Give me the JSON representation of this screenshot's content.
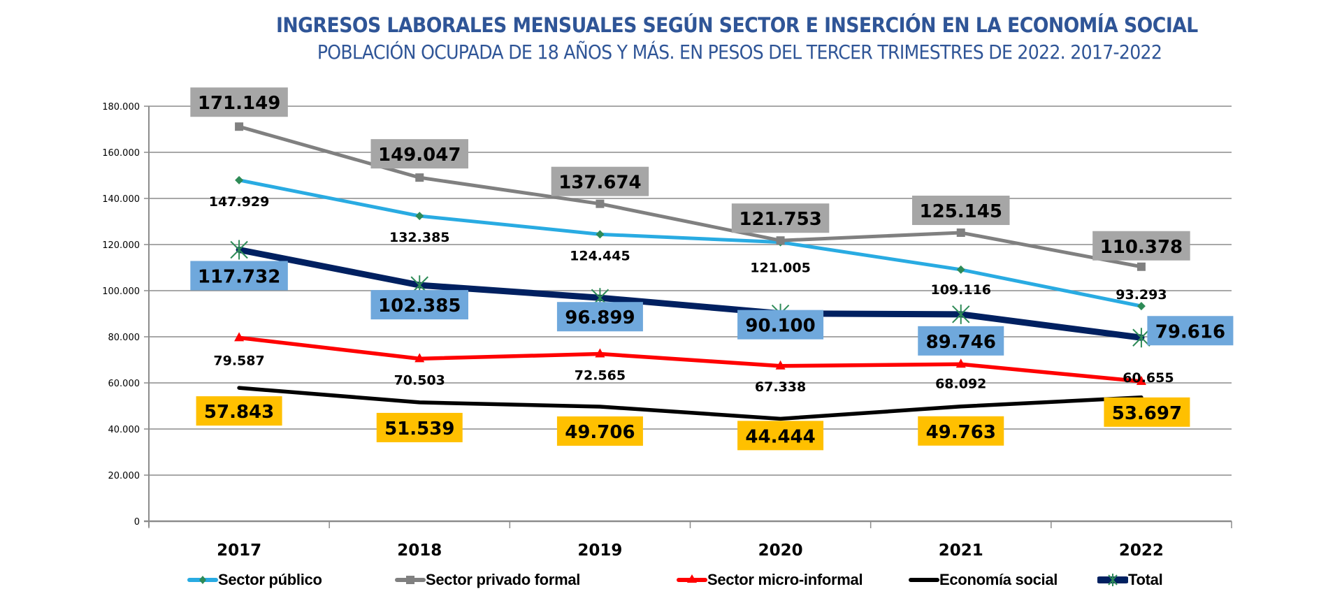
{
  "chart_data": {
    "type": "line",
    "title": "INGRESOS LABORALES MENSUALES SEGÚN SECTOR E INSERCIÓN EN LA ECONOMÍA SOCIAL",
    "subtitle": "POBLACIÓN OCUPADA DE 18 AÑOS Y MÁS. EN PESOS DEL TERCER TRIMESTRES DE 2022. 2017-2022",
    "xlabel": "",
    "ylabel": "",
    "categories": [
      "2017",
      "2018",
      "2019",
      "2020",
      "2021",
      "2022"
    ],
    "ylim": [
      0,
      180000
    ],
    "yticks": [
      0,
      20000,
      40000,
      60000,
      80000,
      100000,
      120000,
      140000,
      160000,
      180000
    ],
    "ytick_labels": [
      "0",
      "20.000",
      "40.000",
      "60.000",
      "80.000",
      "100.000",
      "120.000",
      "140.000",
      "160.000",
      "180.000"
    ],
    "grid": true,
    "legend_position": "bottom",
    "series": [
      {
        "key": "publico",
        "name": "Sector público",
        "color": "#29abe2",
        "marker": "diamond",
        "marker_color": "#2e8b57",
        "values": [
          147929,
          132385,
          124445,
          121005,
          109116,
          93293
        ],
        "labels": [
          "147.929",
          "132.385",
          "124.445",
          "121.005",
          "109.116",
          "93.293"
        ],
        "label_style": "plain"
      },
      {
        "key": "privado",
        "name": "Sector privado formal",
        "color": "#808080",
        "marker": "square",
        "marker_color": "#808080",
        "values": [
          171149,
          149047,
          137674,
          121753,
          125145,
          110378
        ],
        "labels": [
          "171.149",
          "149.047",
          "137.674",
          "121.753",
          "125.145",
          "110.378"
        ],
        "label_style": "box",
        "label_bg": "#a6a6a6"
      },
      {
        "key": "micro",
        "name": "Sector micro-informal",
        "color": "#ff0000",
        "marker": "triangle",
        "marker_color": "#ff0000",
        "values": [
          79587,
          70503,
          72565,
          67338,
          68092,
          60655
        ],
        "labels": [
          "79.587",
          "70.503",
          "72.565",
          "67.338",
          "68.092",
          "60.655"
        ],
        "label_style": "plain"
      },
      {
        "key": "social",
        "name": "Economía social",
        "color": "#000000",
        "marker": "none",
        "values": [
          57843,
          51539,
          49706,
          44444,
          49763,
          53697
        ],
        "labels": [
          "57.843",
          "51.539",
          "49.706",
          "44.444",
          "49.763",
          "53.697"
        ],
        "label_style": "box",
        "label_bg": "#ffc000"
      },
      {
        "key": "total",
        "name": "Total",
        "color": "#002060",
        "marker": "star",
        "marker_color": "#2e8b57",
        "values": [
          117732,
          102385,
          96899,
          90100,
          89746,
          79616
        ],
        "labels": [
          "117.732",
          "102.385",
          "96.899",
          "90.100",
          "89.746",
          "79.616"
        ],
        "label_style": "box",
        "label_bg": "#6fa8dc"
      }
    ]
  }
}
